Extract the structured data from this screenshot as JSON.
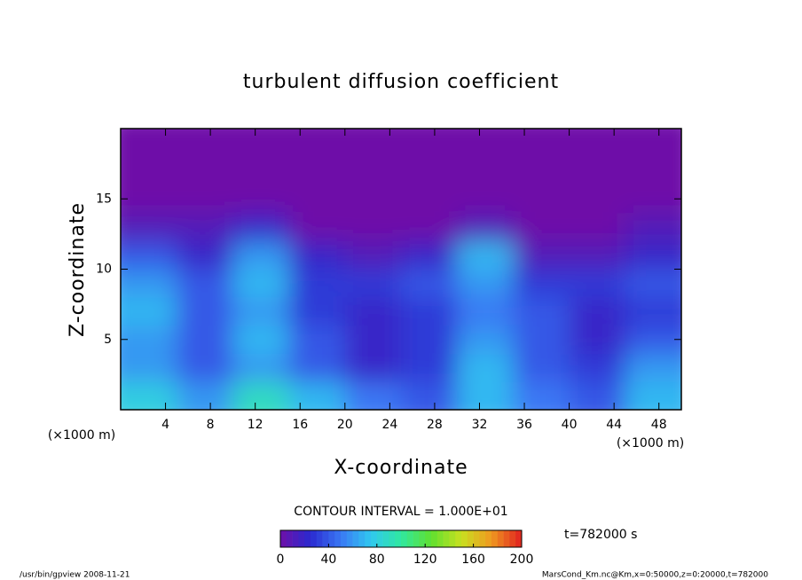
{
  "chart_data": {
    "type": "contour",
    "title": "turbulent diffusion coefficient",
    "x_label": "X-coordinate",
    "y_label": "Z-coordinate",
    "x_unit": "(×1000 m)",
    "y_unit": "(×1000 m)",
    "xlim": [
      0,
      50
    ],
    "ylim": [
      0,
      20
    ],
    "xticks": [
      4,
      8,
      12,
      16,
      20,
      24,
      28,
      32,
      36,
      40,
      44,
      48
    ],
    "yticks": [
      5,
      10,
      15
    ],
    "x": [
      2.5,
      7.5,
      12.5,
      17.5,
      22.5,
      27.5,
      32.5,
      37.5,
      42.5,
      47.5
    ],
    "y": [
      1,
      3,
      5,
      7,
      9,
      11,
      13,
      15,
      17,
      19
    ],
    "z": [
      [
        80,
        60,
        90,
        70,
        50,
        40,
        70,
        50,
        40,
        70
      ],
      [
        60,
        40,
        60,
        40,
        20,
        30,
        70,
        40,
        30,
        60
      ],
      [
        60,
        40,
        70,
        40,
        20,
        30,
        60,
        40,
        20,
        40
      ],
      [
        70,
        40,
        60,
        30,
        20,
        30,
        50,
        40,
        20,
        30
      ],
      [
        60,
        40,
        70,
        30,
        30,
        40,
        60,
        30,
        30,
        40
      ],
      [
        40,
        20,
        60,
        20,
        10,
        20,
        70,
        10,
        10,
        20
      ],
      [
        10,
        10,
        20,
        0,
        0,
        0,
        10,
        0,
        0,
        10
      ],
      [
        0,
        0,
        0,
        0,
        0,
        0,
        0,
        0,
        0,
        0
      ],
      [
        0,
        0,
        0,
        0,
        0,
        0,
        0,
        0,
        0,
        0
      ],
      [
        0,
        0,
        0,
        0,
        0,
        0,
        0,
        0,
        0,
        0
      ]
    ],
    "zlim": [
      0,
      200
    ],
    "zticks": [
      0,
      40,
      80,
      120,
      160,
      200
    ],
    "colors": [
      "#6e10a8",
      "#2a2ad0",
      "#3a78f4",
      "#30c8f0",
      "#30e8a0",
      "#60e030",
      "#c8e020",
      "#f09820",
      "#e02020"
    ],
    "contour_interval": "CONTOUR INTERVAL = 1.000E+01",
    "time_label": "t=782000 s",
    "footer_left": "/usr/bin/gpview   2008-11-21",
    "footer_right": "MarsCond_Km.nc@Km,x=0:50000,z=0:20000,t=782000"
  }
}
